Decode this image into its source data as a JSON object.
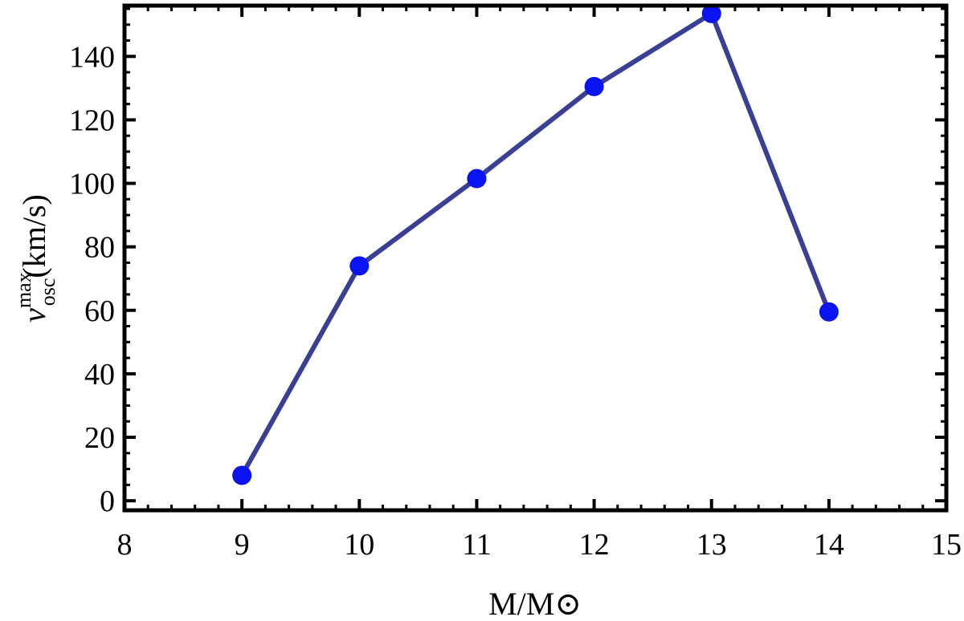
{
  "chart_data": {
    "type": "line",
    "x": [
      9,
      10,
      11,
      12,
      13,
      14
    ],
    "series": [
      {
        "values": [
          8,
          74,
          101.5,
          130.5,
          153.5,
          59.5
        ]
      }
    ],
    "xlim": [
      8,
      15
    ],
    "ylim": [
      -3,
      156
    ],
    "xticks": [
      8,
      9,
      10,
      11,
      12,
      13,
      14,
      15
    ],
    "yticks": [
      0,
      20,
      40,
      60,
      80,
      100,
      120,
      140
    ],
    "xlabel": "M/M⊙",
    "ylabel": {
      "symbol": "v",
      "superscript": "max",
      "subscript": "osc",
      "unit": "(km/s)"
    },
    "grid": false,
    "colors": {
      "line": "#3a3f96",
      "marker": "#0a14f0",
      "frame": "#000000"
    }
  }
}
